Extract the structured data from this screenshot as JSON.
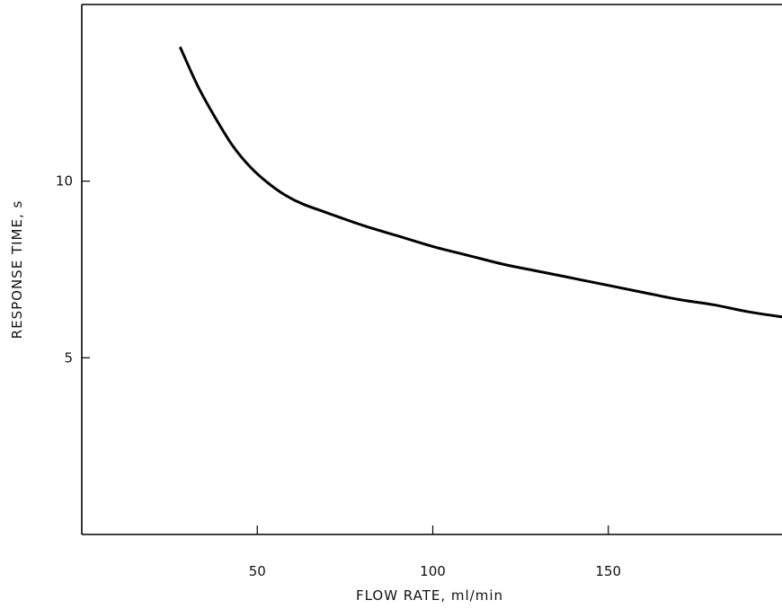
{
  "chart_data": {
    "type": "line",
    "xlabel": "FLOW RATE, ml/min",
    "ylabel": "RESPONSE TIME, s",
    "xlim": [
      0,
      200
    ],
    "ylim": [
      0,
      15
    ],
    "x_ticks": [
      {
        "value": 50,
        "label": "50"
      },
      {
        "value": 100,
        "label": "100"
      },
      {
        "value": 150,
        "label": "150"
      }
    ],
    "y_ticks": [
      {
        "value": 5,
        "label": "5"
      },
      {
        "value": 10,
        "label": "10"
      }
    ],
    "grid": false,
    "series": [
      {
        "color": "#000000",
        "points": [
          {
            "x": 28,
            "y": 13.8
          },
          {
            "x": 33,
            "y": 12.7
          },
          {
            "x": 38,
            "y": 11.8
          },
          {
            "x": 43,
            "y": 11.0
          },
          {
            "x": 48,
            "y": 10.4
          },
          {
            "x": 53,
            "y": 9.95
          },
          {
            "x": 58,
            "y": 9.6
          },
          {
            "x": 63,
            "y": 9.35
          },
          {
            "x": 70,
            "y": 9.1
          },
          {
            "x": 80,
            "y": 8.75
          },
          {
            "x": 90,
            "y": 8.45
          },
          {
            "x": 100,
            "y": 8.15
          },
          {
            "x": 110,
            "y": 7.9
          },
          {
            "x": 120,
            "y": 7.65
          },
          {
            "x": 130,
            "y": 7.45
          },
          {
            "x": 140,
            "y": 7.25
          },
          {
            "x": 150,
            "y": 7.05
          },
          {
            "x": 160,
            "y": 6.85
          },
          {
            "x": 170,
            "y": 6.65
          },
          {
            "x": 180,
            "y": 6.5
          },
          {
            "x": 190,
            "y": 6.3
          },
          {
            "x": 200,
            "y": 6.15
          }
        ]
      }
    ]
  }
}
